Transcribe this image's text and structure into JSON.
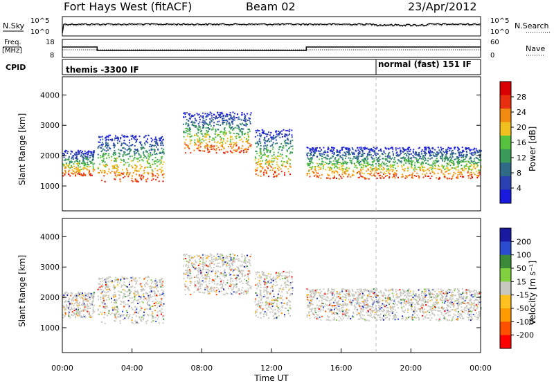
{
  "header": {
    "title": "Fort Hays West (fitACF)",
    "beam": "Beam 02",
    "date": "23/Apr/2012"
  },
  "top_panels": {
    "nsky_label": "N.Sky",
    "nsearch_label": "N.Search",
    "freq_label_1": "Freq.",
    "freq_label_2": "[MHz]",
    "nave_label": "Nave",
    "cpid_label": "CPID",
    "noise_ticks": [
      "10^5",
      "10^0"
    ],
    "freq_ticks": [
      "18",
      "8"
    ],
    "nave_ticks": [
      "60",
      "0"
    ],
    "cpid_segments": [
      {
        "text": "themis -3300 IF",
        "start_hour": 0,
        "end_hour": 18
      },
      {
        "text": "normal (fast) 151 IF",
        "start_hour": 18,
        "end_hour": 24
      }
    ],
    "frequency_mhz": [
      {
        "start_hour": 0,
        "end_hour": 2,
        "value": 14
      },
      {
        "start_hour": 2,
        "end_hour": 14,
        "value": 11.5
      },
      {
        "start_hour": 14,
        "end_hour": 24,
        "value": 14
      }
    ]
  },
  "colors": {
    "power_scale": [
      "#1a1adf",
      "#2a3fb0",
      "#2f6b86",
      "#3a9a5a",
      "#56c23e",
      "#f0c020",
      "#f08a10",
      "#e83010",
      "#d80000"
    ],
    "velocity_scale": [
      "#ff0000",
      "#ff5000",
      "#ff9a00",
      "#ffc020",
      "#c8c8c0",
      "#80d040",
      "#3a8a3a",
      "#2a4ad0",
      "#1a1aa0"
    ]
  },
  "chart_data": [
    {
      "type": "heatmap",
      "name": "power",
      "xlabel": "",
      "ylabel": "Slant Range [km]",
      "xlim": [
        0,
        24
      ],
      "ylim": [
        180,
        4600
      ],
      "yticks": [
        1000,
        2000,
        3000,
        4000
      ],
      "colorbar_label": "Power [dB]",
      "colorbar_ticks": [
        "28",
        "24",
        "20",
        "16",
        "12",
        "8",
        "4"
      ],
      "colorbar_range": [
        0,
        32
      ],
      "echo_bands": [
        {
          "start_hour": 0.0,
          "end_hour": 1.8,
          "range_km": [
            1350,
            2200
          ]
        },
        {
          "start_hour": 2.0,
          "end_hour": 5.8,
          "range_km": [
            1150,
            2700
          ]
        },
        {
          "start_hour": 6.9,
          "end_hour": 10.8,
          "range_km": [
            2100,
            3450
          ]
        },
        {
          "start_hour": 11.0,
          "end_hour": 13.2,
          "range_km": [
            1300,
            2900
          ]
        },
        {
          "start_hour": 14.0,
          "end_hour": 24.0,
          "range_km": [
            1250,
            2300
          ]
        }
      ]
    },
    {
      "type": "heatmap",
      "name": "velocity",
      "xlabel": "Time UT",
      "ylabel": "Slant Range [km]",
      "xlim": [
        0,
        24
      ],
      "ylim": [
        180,
        4600
      ],
      "xticks": [
        "00:00",
        "04:00",
        "08:00",
        "12:00",
        "16:00",
        "20:00",
        "00:00"
      ],
      "yticks": [
        1000,
        2000,
        3000,
        4000
      ],
      "colorbar_label": "Velocity [m s⁻¹]",
      "colorbar_ticks": [
        "200",
        "100",
        "50",
        "15",
        "-15",
        "-50",
        "-100",
        "-200"
      ],
      "colorbar_range": [
        -250,
        250
      ]
    }
  ]
}
